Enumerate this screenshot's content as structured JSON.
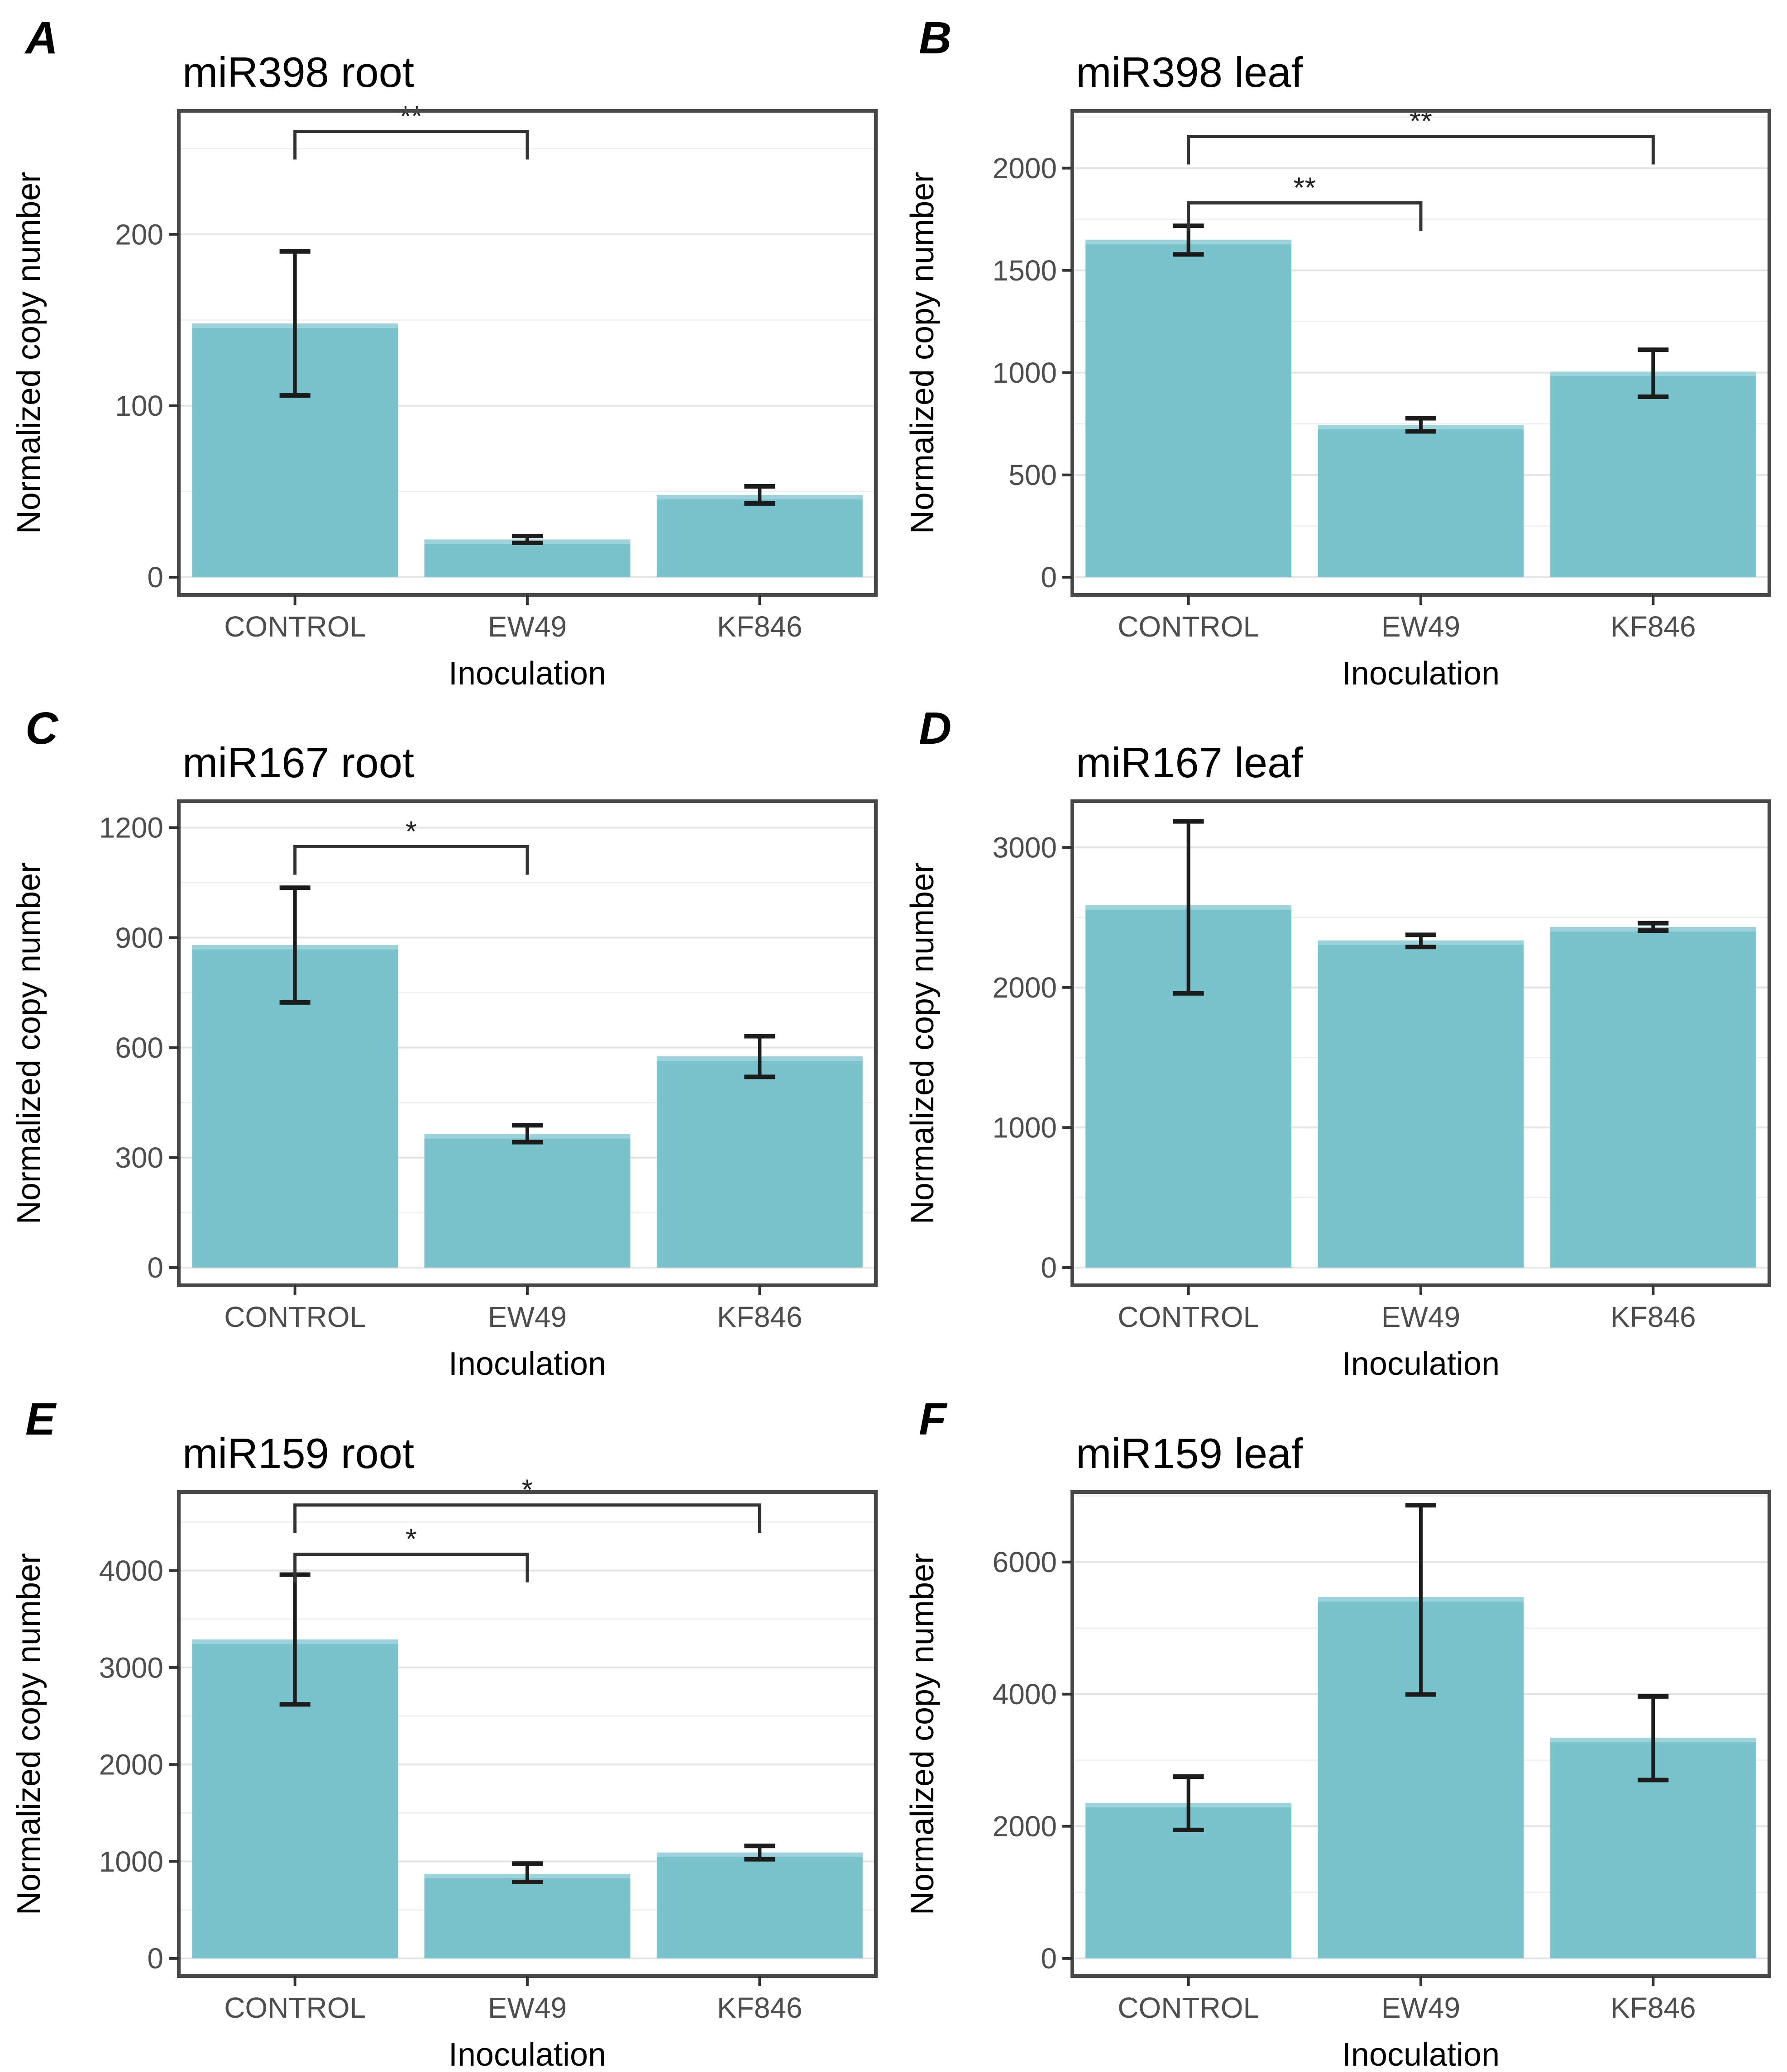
{
  "figure": {
    "background": "#ffffff",
    "bar_color": "#79C3CD",
    "bar_top_highlight": "rgba(255,255,255,0.28)",
    "panel_border_color": "#484848",
    "grid_major_color": "#e4e4e4",
    "grid_minor_color": "#f0f0f0",
    "tick_label_color": "#4d4d4d",
    "axis_title_color": "#000000",
    "error_bar_color": "#1c1c1c",
    "bracket_color": "#333333",
    "legend": "none",
    "grid": "on"
  },
  "chart_data": [
    {
      "type": "bar",
      "panel": "A",
      "title": "miR398 root",
      "xlabel": "Inoculation",
      "ylabel": "Normalized copy number",
      "categories": [
        "CONTROL",
        "EW49",
        "KF846"
      ],
      "values": [
        148,
        22,
        48
      ],
      "error_low": [
        106,
        20,
        43
      ],
      "error_high": [
        190,
        24,
        53
      ],
      "yticks": [
        0,
        100,
        200
      ],
      "ylim": [
        0,
        272
      ],
      "significance": [
        {
          "from": "CONTROL",
          "to": "EW49",
          "level": 260,
          "label": "**"
        }
      ]
    },
    {
      "type": "bar",
      "panel": "B",
      "title": "miR398 leaf",
      "xlabel": "Inoculation",
      "ylabel": "Normalized copy number",
      "categories": [
        "CONTROL",
        "EW49",
        "KF846"
      ],
      "values": [
        1650,
        745,
        1005
      ],
      "error_low": [
        1578,
        713,
        882
      ],
      "error_high": [
        1718,
        777,
        1112
      ],
      "yticks": [
        0,
        500,
        1000,
        1500,
        2000
      ],
      "ylim": [
        0,
        2280
      ],
      "significance": [
        {
          "from": "CONTROL",
          "to": "EW49",
          "level": 1830,
          "label": "**"
        },
        {
          "from": "CONTROL",
          "to": "KF846",
          "level": 2155,
          "label": "**"
        }
      ]
    },
    {
      "type": "bar",
      "panel": "C",
      "title": "miR167 root",
      "xlabel": "Inoculation",
      "ylabel": "Normalized copy number",
      "categories": [
        "CONTROL",
        "EW49",
        "KF846"
      ],
      "values": [
        880,
        364,
        576
      ],
      "error_low": [
        723,
        342,
        520
      ],
      "error_high": [
        1036,
        388,
        631
      ],
      "yticks": [
        0,
        300,
        600,
        900,
        1200
      ],
      "ylim": [
        0,
        1272
      ],
      "significance": [
        {
          "from": "CONTROL",
          "to": "EW49",
          "level": 1148,
          "label": "*"
        }
      ]
    },
    {
      "type": "bar",
      "panel": "D",
      "title": "miR167 leaf",
      "xlabel": "Inoculation",
      "ylabel": "Normalized copy number",
      "categories": [
        "CONTROL",
        "EW49",
        "KF846"
      ],
      "values": [
        2588,
        2336,
        2432
      ],
      "error_low": [
        1958,
        2289,
        2406
      ],
      "error_high": [
        3186,
        2376,
        2459
      ],
      "yticks": [
        0,
        1000,
        2000,
        3000
      ],
      "ylim": [
        0,
        3330
      ],
      "significance": []
    },
    {
      "type": "bar",
      "panel": "E",
      "title": "miR159 root",
      "xlabel": "Inoculation",
      "ylabel": "Normalized copy number",
      "categories": [
        "CONTROL",
        "EW49",
        "KF846"
      ],
      "values": [
        3290,
        872,
        1092
      ],
      "error_low": [
        2620,
        788,
        1022
      ],
      "error_high": [
        3958,
        978,
        1160
      ],
      "yticks": [
        0,
        1000,
        2000,
        3000,
        4000
      ],
      "ylim": [
        0,
        4810
      ],
      "significance": [
        {
          "from": "CONTROL",
          "to": "EW49",
          "level": 4168,
          "label": "*"
        },
        {
          "from": "CONTROL",
          "to": "KF846",
          "level": 4676,
          "label": "*"
        }
      ]
    },
    {
      "type": "bar",
      "panel": "F",
      "title": "miR159 leaf",
      "xlabel": "Inoculation",
      "ylabel": "Normalized copy number",
      "categories": [
        "CONTROL",
        "EW49",
        "KF846"
      ],
      "values": [
        2355,
        5470,
        3340
      ],
      "error_low": [
        1945,
        3995,
        2700
      ],
      "error_high": [
        2752,
        6860,
        3965
      ],
      "yticks": [
        0,
        2000,
        4000,
        6000
      ],
      "ylim": [
        0,
        7060
      ],
      "significance": []
    }
  ]
}
